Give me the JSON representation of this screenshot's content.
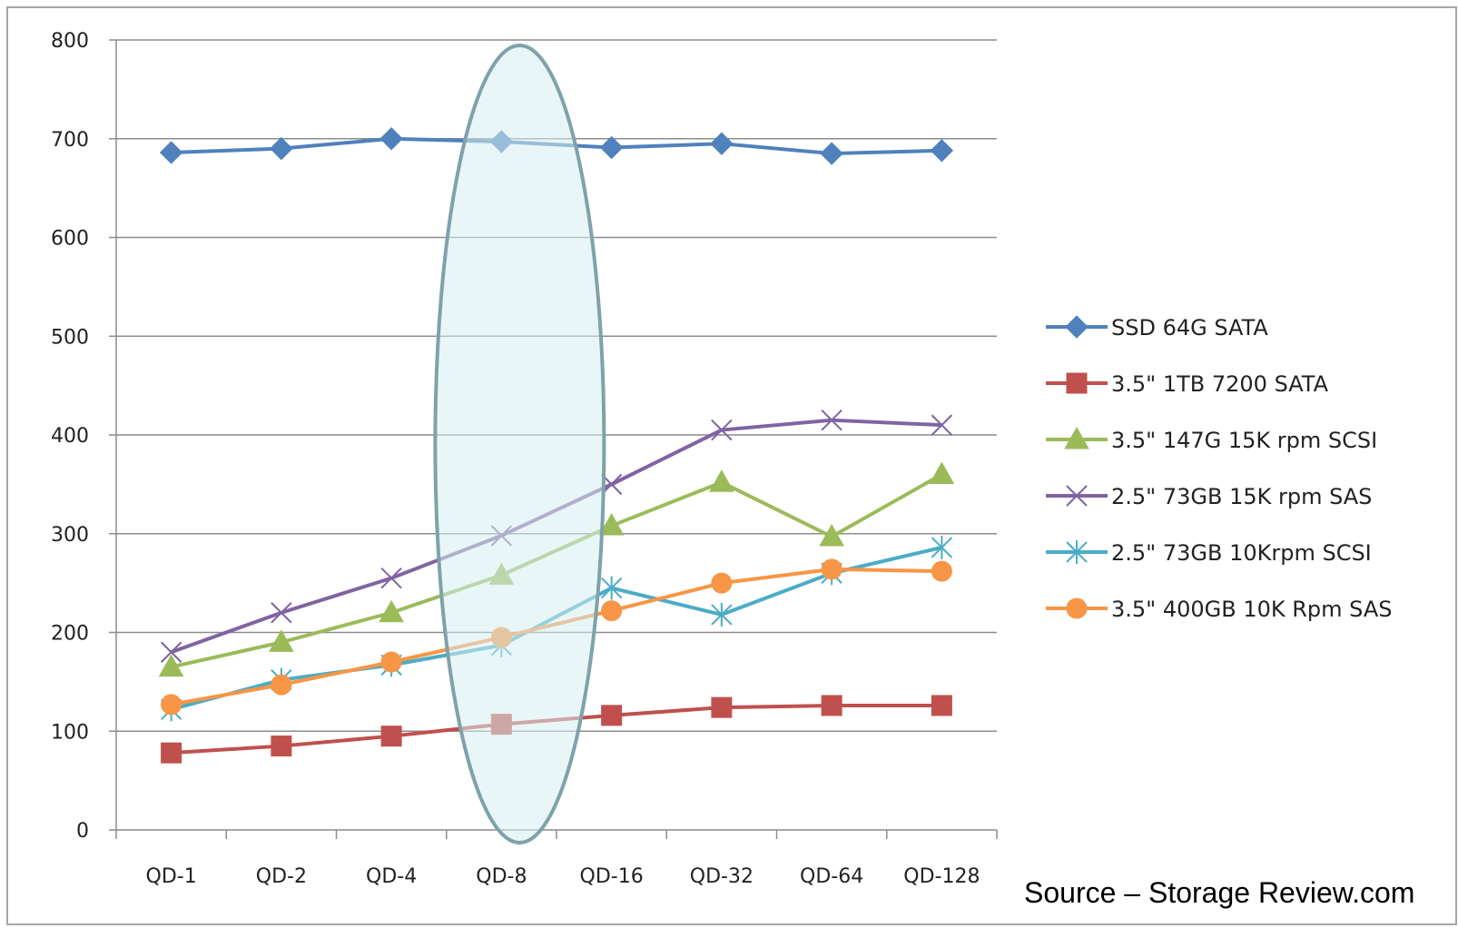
{
  "chart_data": {
    "type": "line",
    "title": "",
    "xlabel": "",
    "ylabel": "",
    "ylim": [
      0,
      800
    ],
    "yticks": [
      0,
      100,
      200,
      300,
      400,
      500,
      600,
      700,
      800
    ],
    "grid": "horizontal",
    "legend_position": "right",
    "categories": [
      "QD-1",
      "QD-2",
      "QD-4",
      "QD-8",
      "QD-16",
      "QD-32",
      "QD-64",
      "QD-128"
    ],
    "highlight": {
      "category": "QD-8",
      "shape": "ellipse",
      "fill": "#d7eef0",
      "stroke": "#7fa2aa"
    },
    "series": [
      {
        "name": "SSD 64G SATA",
        "color": "#4f81bd",
        "marker": "diamond",
        "values": [
          686,
          690,
          700,
          697,
          691,
          695,
          685,
          688
        ]
      },
      {
        "name": "3.5\" 1TB 7200 SATA",
        "color": "#c0504d",
        "marker": "square",
        "values": [
          78,
          85,
          95,
          107,
          116,
          124,
          126,
          126
        ]
      },
      {
        "name": "3.5\" 147G 15K rpm SCSI",
        "color": "#9bbb59",
        "marker": "triangle",
        "values": [
          165,
          190,
          220,
          258,
          308,
          352,
          297,
          360
        ]
      },
      {
        "name": "2.5\" 73GB 15K rpm SAS",
        "color": "#8064a2",
        "marker": "x",
        "values": [
          180,
          220,
          255,
          298,
          350,
          405,
          415,
          410
        ]
      },
      {
        "name": "2.5\" 73GB 10Krpm SCSI",
        "color": "#4bacc6",
        "marker": "star",
        "values": [
          122,
          152,
          167,
          187,
          245,
          218,
          260,
          286
        ]
      },
      {
        "name": "3.5\" 400GB 10K Rpm SAS",
        "color": "#f79646",
        "marker": "circle",
        "values": [
          127,
          147,
          170,
          195,
          222,
          250,
          264,
          262
        ]
      }
    ]
  },
  "source_note": "Source – Storage Review.com"
}
